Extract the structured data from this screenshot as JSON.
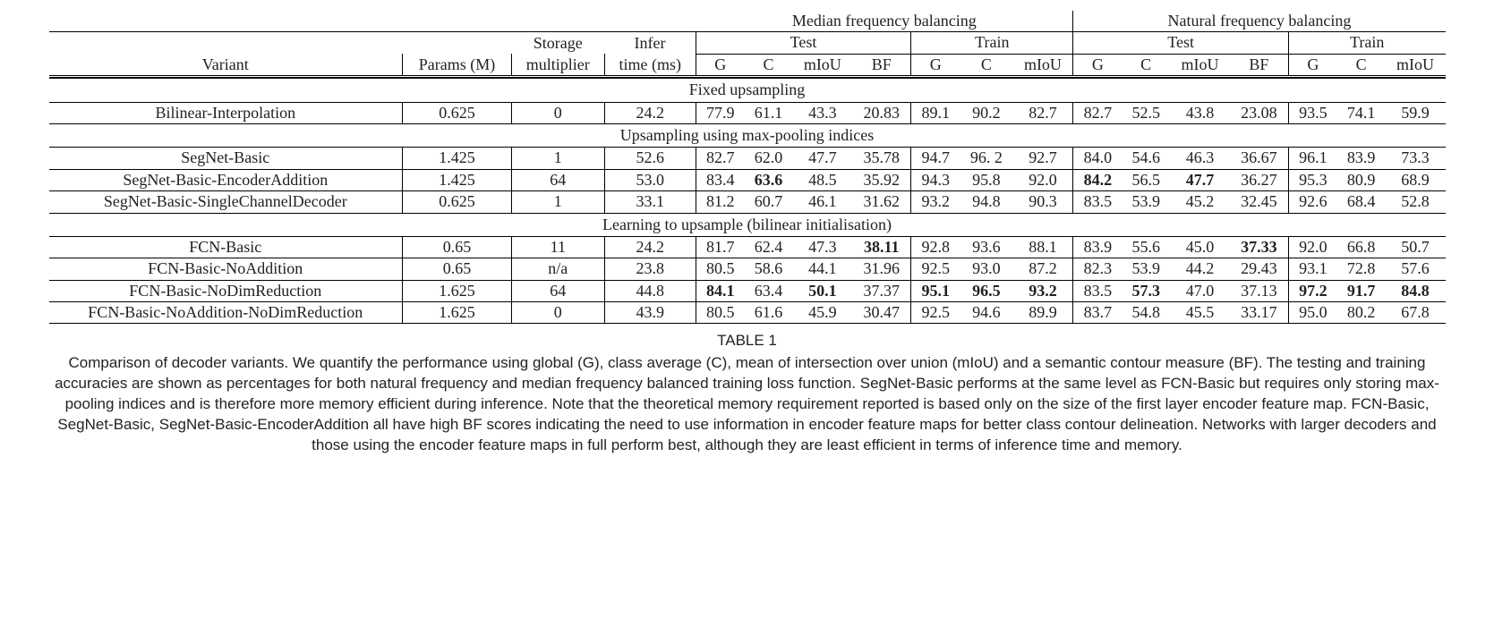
{
  "headers": {
    "super_median": "Median frequency balancing",
    "super_natural": "Natural frequency balancing",
    "variant": "Variant",
    "params": "Params (M)",
    "storage_top": "Storage",
    "storage_bot": "multiplier",
    "infer_top": "Infer",
    "infer_bot": "time (ms)",
    "test": "Test",
    "train": "Train",
    "G": "G",
    "C": "C",
    "mIoU": "mIoU",
    "BF": "BF"
  },
  "sections": [
    {
      "title": "Fixed upsampling"
    },
    {
      "title": "Upsampling using max-pooling indices"
    },
    {
      "title": "Learning to upsample (bilinear initialisation)"
    }
  ],
  "rows": {
    "bilinear": {
      "v": "Bilinear-Interpolation",
      "p": "0.625",
      "s": "0",
      "t": "24.2",
      "m": {
        "test": {
          "G": "77.9",
          "C": "61.1",
          "mIoU": "43.3",
          "BF": "20.83"
        },
        "train": {
          "G": "89.1",
          "C": "90.2",
          "mIoU": "82.7"
        }
      },
      "n": {
        "test": {
          "G": "82.7",
          "C": "52.5",
          "mIoU": "43.8",
          "BF": "23.08"
        },
        "train": {
          "G": "93.5",
          "C": "74.1",
          "mIoU": "59.9"
        }
      }
    },
    "segnet": {
      "v": "SegNet-Basic",
      "p": "1.425",
      "s": "1",
      "t": "52.6",
      "m": {
        "test": {
          "G": "82.7",
          "C": "62.0",
          "mIoU": "47.7",
          "BF": "35.78"
        },
        "train": {
          "G": "94.7",
          "C": "96. 2",
          "mIoU": "92.7"
        }
      },
      "n": {
        "test": {
          "G": "84.0",
          "C": "54.6",
          "mIoU": "46.3",
          "BF": "36.67"
        },
        "train": {
          "G": "96.1",
          "C": "83.9",
          "mIoU": "73.3"
        }
      }
    },
    "segenc": {
      "v": "SegNet-Basic-EncoderAddition",
      "p": "1.425",
      "s": "64",
      "t": "53.0",
      "m": {
        "test": {
          "G": "83.4",
          "C": "63.6",
          "mIoU": "48.5",
          "BF": "35.92"
        },
        "train": {
          "G": "94.3",
          "C": "95.8",
          "mIoU": "92.0"
        }
      },
      "n": {
        "test": {
          "G": "84.2",
          "C": "56.5",
          "mIoU": "47.7",
          "BF": "36.27"
        },
        "train": {
          "G": "95.3",
          "C": "80.9",
          "mIoU": "68.9"
        }
      }
    },
    "segsc": {
      "v": "SegNet-Basic-SingleChannelDecoder",
      "p": "0.625",
      "s": "1",
      "t": "33.1",
      "m": {
        "test": {
          "G": "81.2",
          "C": "60.7",
          "mIoU": "46.1",
          "BF": "31.62"
        },
        "train": {
          "G": "93.2",
          "C": "94.8",
          "mIoU": "90.3"
        }
      },
      "n": {
        "test": {
          "G": "83.5",
          "C": "53.9",
          "mIoU": "45.2",
          "BF": "32.45"
        },
        "train": {
          "G": "92.6",
          "C": "68.4",
          "mIoU": "52.8"
        }
      }
    },
    "fcn": {
      "v": "FCN-Basic",
      "p": "0.65",
      "s": "11",
      "t": "24.2",
      "m": {
        "test": {
          "G": "81.7",
          "C": "62.4",
          "mIoU": "47.3",
          "BF": "38.11"
        },
        "train": {
          "G": "92.8",
          "C": "93.6",
          "mIoU": "88.1"
        }
      },
      "n": {
        "test": {
          "G": "83.9",
          "C": "55.6",
          "mIoU": "45.0",
          "BF": "37.33"
        },
        "train": {
          "G": "92.0",
          "C": "66.8",
          "mIoU": "50.7"
        }
      }
    },
    "fcnna": {
      "v": "FCN-Basic-NoAddition",
      "p": "0.65",
      "s": "n/a",
      "t": "23.8",
      "m": {
        "test": {
          "G": "80.5",
          "C": "58.6",
          "mIoU": "44.1",
          "BF": "31.96"
        },
        "train": {
          "G": "92.5",
          "C": "93.0",
          "mIoU": "87.2"
        }
      },
      "n": {
        "test": {
          "G": "82.3",
          "C": "53.9",
          "mIoU": "44.2",
          "BF": "29.43"
        },
        "train": {
          "G": "93.1",
          "C": "72.8",
          "mIoU": "57.6"
        }
      }
    },
    "fcnndr": {
      "v": "FCN-Basic-NoDimReduction",
      "p": "1.625",
      "s": "64",
      "t": "44.8",
      "m": {
        "test": {
          "G": "84.1",
          "C": "63.4",
          "mIoU": "50.1",
          "BF": "37.37"
        },
        "train": {
          "G": "95.1",
          "C": "96.5",
          "mIoU": "93.2"
        }
      },
      "n": {
        "test": {
          "G": "83.5",
          "C": "57.3",
          "mIoU": "47.0",
          "BF": "37.13"
        },
        "train": {
          "G": "97.2",
          "C": "91.7",
          "mIoU": "84.8"
        }
      }
    },
    "fcnnandr": {
      "v": "FCN-Basic-NoAddition-NoDimReduction",
      "p": "1.625",
      "s": "0",
      "t": "43.9",
      "m": {
        "test": {
          "G": "80.5",
          "C": "61.6",
          "mIoU": "45.9",
          "BF": "30.47"
        },
        "train": {
          "G": "92.5",
          "C": "94.6",
          "mIoU": "89.9"
        }
      },
      "n": {
        "test": {
          "G": "83.7",
          "C": "54.8",
          "mIoU": "45.5",
          "BF": "33.17"
        },
        "train": {
          "G": "95.0",
          "C": "80.2",
          "mIoU": "67.8"
        }
      }
    }
  },
  "bold_cells": [
    "segenc.m.test.C",
    "segenc.n.test.G",
    "segenc.n.test.mIoU",
    "fcn.m.test.BF",
    "fcn.n.test.BF",
    "fcnndr.m.test.G",
    "fcnndr.m.test.mIoU",
    "fcnndr.m.train.G",
    "fcnndr.m.train.C",
    "fcnndr.m.train.mIoU",
    "fcnndr.n.test.C",
    "fcnndr.n.train.G",
    "fcnndr.n.train.C",
    "fcnndr.n.train.mIoU"
  ],
  "caption": {
    "label": "TABLE 1",
    "text": "Comparison of decoder variants. We quantify the performance using global (G), class average (C), mean of intersection over union (mIoU) and a semantic contour measure (BF). The testing and training accuracies are shown as percentages for both natural frequency and median frequency balanced training loss function. SegNet-Basic performs at the same level as FCN-Basic but requires only storing max-pooling indices and is therefore more memory efficient during inference. Note that the theoretical memory requirement reported is based only on the size of the first layer encoder feature map. FCN-Basic, SegNet-Basic, SegNet-Basic-EncoderAddition all have high BF scores indicating the need to use information in encoder feature maps for better class contour delineation. Networks with larger decoders and those using the encoder feature maps in full perform best, although they are least efficient in terms of inference time and memory."
  },
  "style": {
    "font_family": "Times New Roman",
    "font_size_pt": 13,
    "caption_font_family": "Arial",
    "text_color": "#222222",
    "background_color": "#ffffff",
    "rule_color": "#000000"
  }
}
